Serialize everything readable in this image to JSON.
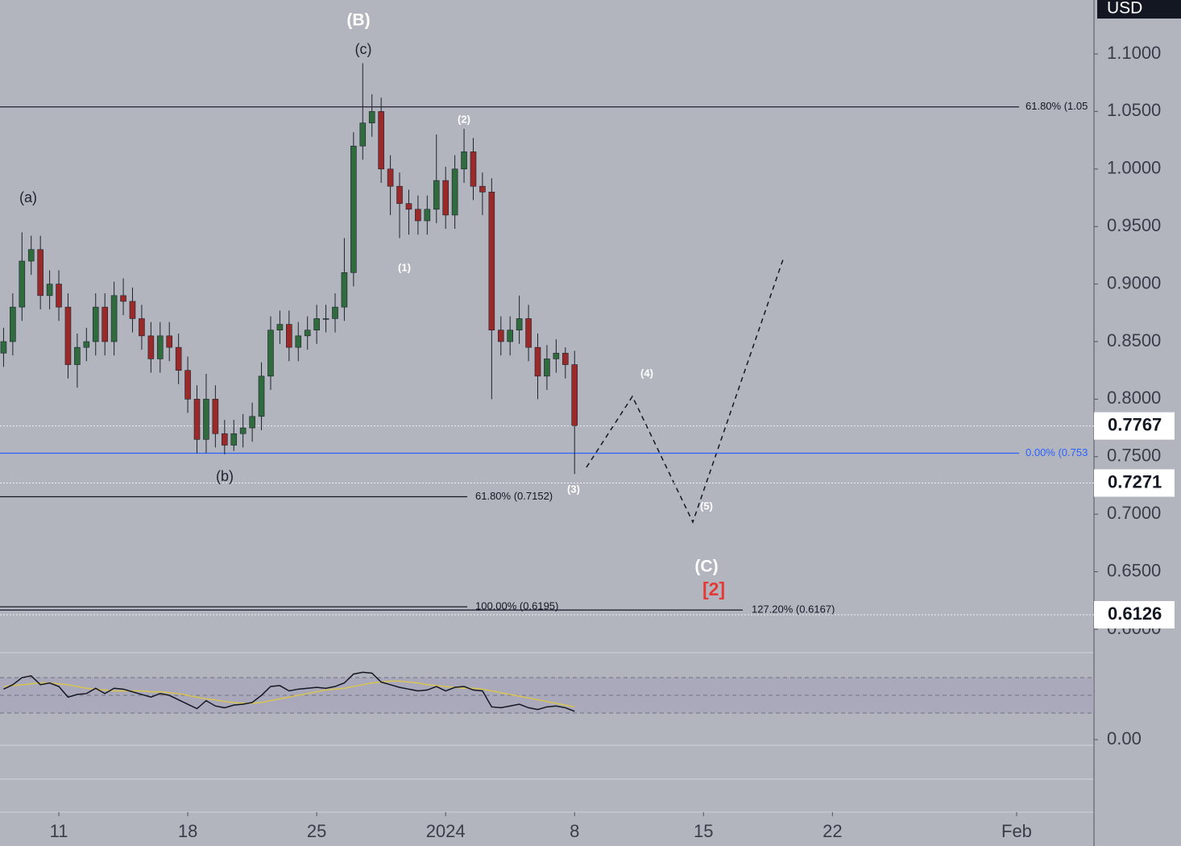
{
  "chart_data": {
    "type": "candlestick",
    "currency": "USD",
    "up_color": "#2f6b3d",
    "down_color": "#9a2a2a",
    "wick_color": "#1e222d",
    "x": [
      -3,
      -2.5,
      -2,
      -1.5,
      -1,
      -0.5,
      0,
      0.5,
      1,
      1.5,
      2,
      2.5,
      3,
      3.5,
      4,
      4.5,
      5,
      5.5,
      6,
      6.5,
      7,
      7.5,
      8,
      8.5,
      9,
      9.5,
      10,
      10.5,
      11,
      11.5,
      12,
      12.5,
      13,
      13.5,
      14,
      14.5,
      15,
      15.5,
      16,
      16.5,
      17,
      17.5,
      18,
      18.5,
      19,
      19.5,
      20,
      20.5,
      21,
      21.5,
      22,
      22.5,
      23,
      23.5,
      24,
      24.5,
      25,
      25.5,
      26,
      26.5,
      27,
      27.5,
      28
    ],
    "open": [
      0.84,
      0.85,
      0.88,
      0.92,
      0.93,
      0.89,
      0.9,
      0.88,
      0.83,
      0.845,
      0.85,
      0.88,
      0.85,
      0.89,
      0.885,
      0.87,
      0.855,
      0.835,
      0.855,
      0.845,
      0.825,
      0.8,
      0.765,
      0.8,
      0.77,
      0.76,
      0.77,
      0.775,
      0.785,
      0.82,
      0.86,
      0.865,
      0.845,
      0.855,
      0.86,
      0.87,
      0.87,
      0.88,
      0.91,
      1.02,
      1.04,
      1.05,
      1.0,
      0.985,
      0.97,
      0.965,
      0.955,
      0.965,
      0.99,
      0.96,
      1.0,
      1.015,
      0.985,
      0.98,
      0.86,
      0.85,
      0.86,
      0.87,
      0.845,
      0.82,
      0.835,
      0.84,
      0.83
    ],
    "high": [
      0.862,
      0.892,
      0.945,
      0.942,
      0.942,
      0.912,
      0.912,
      0.892,
      0.857,
      0.862,
      0.892,
      0.892,
      0.902,
      0.905,
      0.897,
      0.882,
      0.867,
      0.867,
      0.867,
      0.857,
      0.837,
      0.812,
      0.822,
      0.812,
      0.782,
      0.782,
      0.787,
      0.797,
      0.832,
      0.872,
      0.877,
      0.877,
      0.867,
      0.872,
      0.882,
      0.882,
      0.892,
      0.94,
      1.032,
      1.092,
      1.065,
      1.062,
      1.012,
      0.997,
      0.982,
      0.977,
      0.977,
      1.03,
      1.002,
      1.012,
      1.035,
      1.027,
      0.997,
      0.992,
      0.872,
      0.872,
      0.89,
      0.882,
      0.857,
      0.847,
      0.852,
      0.845,
      0.842
    ],
    "low": [
      0.828,
      0.838,
      0.868,
      0.908,
      0.878,
      0.878,
      0.868,
      0.818,
      0.81,
      0.833,
      0.838,
      0.838,
      0.838,
      0.873,
      0.858,
      0.843,
      0.823,
      0.823,
      0.833,
      0.813,
      0.788,
      0.753,
      0.753,
      0.758,
      0.752,
      0.755,
      0.758,
      0.763,
      0.773,
      0.808,
      0.848,
      0.833,
      0.833,
      0.843,
      0.848,
      0.858,
      0.858,
      0.868,
      0.898,
      1.008,
      1.028,
      0.988,
      0.96,
      0.94,
      0.943,
      0.943,
      0.943,
      0.953,
      0.948,
      0.948,
      0.988,
      0.973,
      0.96,
      0.8,
      0.838,
      0.838,
      0.848,
      0.833,
      0.8,
      0.808,
      0.823,
      0.818,
      0.735
    ],
    "close": [
      0.85,
      0.88,
      0.92,
      0.93,
      0.89,
      0.9,
      0.88,
      0.83,
      0.845,
      0.85,
      0.88,
      0.85,
      0.89,
      0.885,
      0.87,
      0.855,
      0.835,
      0.855,
      0.845,
      0.825,
      0.8,
      0.765,
      0.8,
      0.77,
      0.76,
      0.77,
      0.775,
      0.785,
      0.82,
      0.86,
      0.865,
      0.845,
      0.855,
      0.86,
      0.87,
      0.87,
      0.88,
      0.91,
      1.02,
      1.04,
      1.05,
      1.0,
      0.985,
      0.97,
      0.965,
      0.955,
      0.965,
      0.99,
      0.96,
      1.0,
      1.015,
      0.985,
      0.98,
      0.86,
      0.85,
      0.86,
      0.87,
      0.845,
      0.82,
      0.835,
      0.84,
      0.83,
      0.777
    ],
    "xlim": [
      -3.19375,
      56.2
    ],
    "xticks": [
      {
        "value": 0,
        "label": "11"
      },
      {
        "value": 7,
        "label": "18"
      },
      {
        "value": 14,
        "label": "25"
      },
      {
        "value": 21,
        "label": "2024"
      },
      {
        "value": 28,
        "label": "8"
      },
      {
        "value": 35,
        "label": "15"
      },
      {
        "value": 42,
        "label": "22"
      },
      {
        "value": 52,
        "label": "Feb"
      }
    ],
    "ylim": [
      0.5902,
      1.1469
    ],
    "yticks": [
      {
        "value": 0.6,
        "label": "0.6000"
      },
      {
        "value": 0.65,
        "label": "0.6500"
      },
      {
        "value": 0.7,
        "label": "0.7000"
      },
      {
        "value": 0.75,
        "label": "0.7500"
      },
      {
        "value": 0.8,
        "label": "0.8000"
      },
      {
        "value": 0.85,
        "label": "0.8500"
      },
      {
        "value": 0.9,
        "label": "0.9000"
      },
      {
        "value": 0.95,
        "label": "0.9500"
      },
      {
        "value": 1.0,
        "label": "1.0000"
      },
      {
        "value": 1.05,
        "label": "1.0500"
      },
      {
        "value": 1.1,
        "label": "1.1000"
      }
    ],
    "price_markers": [
      0.7767,
      0.7271,
      0.6126
    ],
    "fib_levels": [
      {
        "label": "61.80% (1.05",
        "value": 1.054,
        "color": "#131722"
      },
      {
        "label": "0.00% (0.753",
        "value": 0.753,
        "color": "#2962ff"
      },
      {
        "label": "61.80% (0.7152)",
        "value": 0.7152,
        "color": "#131722"
      },
      {
        "label": "100.00% (0.6195)",
        "value": 0.6195,
        "color": "#131722"
      },
      {
        "label": "127.20% (0.6167)",
        "value": 0.6167,
        "color": "#131722"
      }
    ],
    "annotations": [
      "(B)",
      "(c)",
      "(a)",
      "(b)",
      "(1)",
      "(2)",
      "(3)",
      "(4)",
      "(5)",
      "(C)",
      "[2]"
    ],
    "indicator": {
      "ylim": [
        -81.8,
        98.2
      ],
      "yticks": [
        {
          "value": 0,
          "label": "0.00"
        }
      ],
      "levels": [
        30,
        50,
        70
      ],
      "series": [
        {
          "color": "#131722",
          "values": [
            57,
            62,
            70,
            72,
            62,
            64,
            60,
            48,
            51,
            52,
            58,
            52,
            58,
            57,
            54,
            51,
            48,
            52,
            50,
            45,
            40,
            35,
            44,
            38,
            36,
            39,
            40,
            42,
            50,
            60,
            61,
            55,
            57,
            58,
            59,
            58,
            60,
            64,
            74,
            76,
            75,
            65,
            62,
            59,
            57,
            55,
            56,
            60,
            55,
            59,
            60,
            56,
            55,
            37,
            36,
            38,
            40,
            36,
            34,
            37,
            38,
            36,
            32
          ]
        },
        {
          "color": "#d8c451",
          "values": [
            60,
            61,
            62,
            63,
            64,
            64,
            63,
            62,
            60,
            58,
            57,
            56,
            55,
            55,
            55,
            55,
            54,
            54,
            53,
            52,
            50,
            48,
            46,
            45,
            43,
            42,
            41,
            41,
            42,
            44,
            46,
            48,
            50,
            52,
            54,
            56,
            57,
            58,
            60,
            62,
            64,
            65,
            66,
            66,
            65,
            64,
            62,
            61,
            60,
            59,
            58,
            58,
            57,
            55,
            53,
            51,
            49,
            47,
            45,
            43,
            41,
            39,
            37
          ]
        }
      ]
    }
  }
}
